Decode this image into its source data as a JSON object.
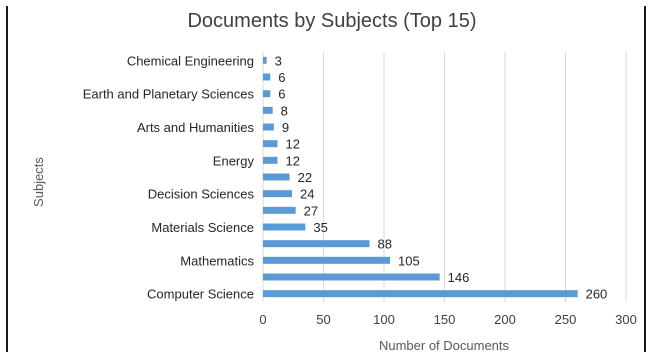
{
  "chart_data": {
    "type": "bar",
    "orientation": "horizontal",
    "title": "Documents by Subjects (Top 15)",
    "xlabel": "Number of Documents",
    "ylabel": "Subjects",
    "categories": [
      "Computer Science",
      "",
      "Mathematics",
      "",
      "Materials Science",
      "",
      "Decision Sciences",
      "",
      "Energy",
      "",
      "Arts and Humanities",
      "",
      "Earth and Planetary Sciences",
      "",
      "Chemical Engineering"
    ],
    "values": [
      260,
      146,
      105,
      88,
      35,
      27,
      24,
      22,
      12,
      12,
      9,
      8,
      6,
      6,
      3
    ],
    "data_labels": [
      "260",
      "146",
      "105",
      "88",
      "35",
      "27",
      "24",
      "22",
      "12",
      "12",
      "9",
      "8",
      "6",
      "6",
      "3"
    ],
    "xlim": [
      0,
      300
    ],
    "xticks": [
      "0",
      "50",
      "100",
      "150",
      "200",
      "250",
      "300"
    ],
    "grid": "vertical",
    "bar_color": "#5b9bd5",
    "legend": "none"
  }
}
